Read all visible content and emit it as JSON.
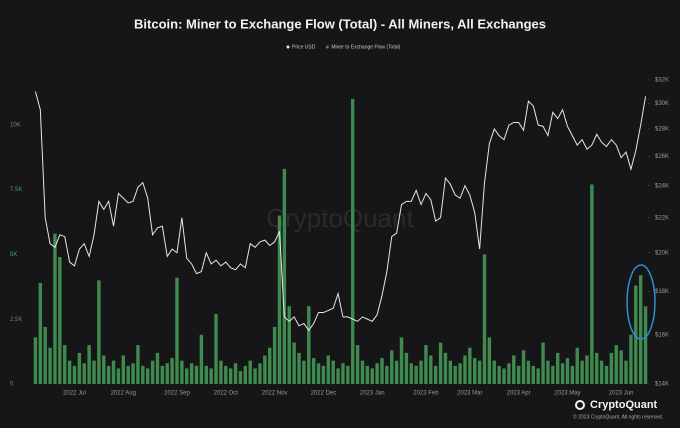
{
  "chart_data": {
    "type": "bar-line",
    "title": "Bitcoin: Miner to Exchange Flow (Total) - All Miners, All Exchanges",
    "watermark": "CryptoQuant",
    "footer_brand": "CryptoQuant",
    "footer_copyright": "© 2023 CryptoQuant. All rights reserved.",
    "categories": [
      null,
      null,
      null,
      null,
      null,
      null,
      null,
      null,
      "2022 Jul",
      null,
      null,
      null,
      null,
      null,
      null,
      null,
      null,
      null,
      "2022 Aug",
      null,
      null,
      null,
      null,
      null,
      null,
      null,
      null,
      null,
      null,
      "2022 Sep",
      null,
      null,
      null,
      null,
      null,
      null,
      null,
      null,
      null,
      "2022 Oct",
      null,
      null,
      null,
      null,
      null,
      null,
      null,
      null,
      null,
      "2022 Nov",
      null,
      null,
      null,
      null,
      null,
      null,
      null,
      null,
      null,
      "2022 Dec",
      null,
      null,
      null,
      null,
      null,
      null,
      null,
      null,
      null,
      "2023 Jan",
      null,
      null,
      null,
      null,
      null,
      null,
      null,
      null,
      null,
      null,
      "2023 Feb",
      null,
      null,
      null,
      null,
      null,
      null,
      null,
      null,
      "2023 Mar",
      null,
      null,
      null,
      null,
      null,
      null,
      null,
      null,
      null,
      "2023 Apr",
      null,
      null,
      null,
      null,
      null,
      null,
      null,
      null,
      null,
      "2023 May",
      null,
      null,
      null,
      null,
      null,
      null,
      null,
      null,
      null,
      null,
      "2023 Jun",
      null,
      null,
      null,
      null,
      null
    ],
    "series": [
      {
        "name": "Miner to Exchange Flow (Total)",
        "type": "bar",
        "color": "#3f8a4e",
        "values": [
          1800,
          3900,
          2200,
          1400,
          5800,
          4900,
          1500,
          900,
          700,
          1200,
          800,
          1500,
          900,
          4000,
          1100,
          700,
          900,
          600,
          1100,
          700,
          800,
          1500,
          700,
          600,
          900,
          1200,
          700,
          800,
          1000,
          4100,
          900,
          600,
          800,
          700,
          1900,
          700,
          600,
          2700,
          900,
          700,
          600,
          800,
          500,
          700,
          900,
          600,
          800,
          1100,
          1400,
          2200,
          6500,
          8300,
          3000,
          1600,
          1200,
          900,
          3000,
          1000,
          800,
          700,
          1100,
          900,
          600,
          800,
          700,
          11000,
          1500,
          900,
          700,
          600,
          800,
          1000,
          700,
          1300,
          900,
          1800,
          1200,
          800,
          700,
          900,
          1500,
          1100,
          700,
          1600,
          1200,
          900,
          700,
          800,
          1100,
          1400,
          1000,
          900,
          5000,
          1800,
          900,
          700,
          600,
          800,
          1100,
          700,
          1300,
          900,
          700,
          600,
          1600,
          900,
          700,
          1200,
          800,
          1000,
          700,
          1400,
          900,
          1100,
          7700,
          1200,
          900,
          700,
          1200,
          1500,
          1300,
          900,
          1900,
          3800,
          4200,
          3000
        ]
      },
      {
        "name": "Price USD",
        "type": "line",
        "axis": "y2",
        "color": "#e6e6e6",
        "values": [
          31000,
          29500,
          22000,
          20500,
          20300,
          21000,
          20900,
          19500,
          19300,
          20200,
          20500,
          19800,
          21000,
          23000,
          22500,
          23000,
          21500,
          23500,
          23200,
          22900,
          23000,
          23900,
          24200,
          23200,
          21000,
          21400,
          21500,
          19800,
          20200,
          20000,
          22000,
          19700,
          19400,
          18900,
          19000,
          20000,
          19400,
          19600,
          19300,
          19500,
          19200,
          19100,
          19400,
          19200,
          20500,
          20300,
          20600,
          20700,
          20400,
          20600,
          21200,
          16800,
          16600,
          16800,
          16400,
          16500,
          16200,
          16500,
          17000,
          17000,
          17100,
          17200,
          17900,
          16800,
          16800,
          16700,
          16600,
          16800,
          16700,
          16600,
          16900,
          17800,
          19000,
          20900,
          21100,
          22800,
          23000,
          23000,
          23700,
          22800,
          23500,
          23100,
          21800,
          22000,
          24500,
          24100,
          23400,
          23200,
          24000,
          23400,
          22300,
          20200,
          24200,
          26900,
          28000,
          27500,
          27200,
          28300,
          28500,
          28500,
          27900,
          30200,
          29800,
          28300,
          28200,
          27500,
          29300,
          28800,
          29500,
          28200,
          27500,
          26800,
          27200,
          26500,
          26800,
          27600,
          27000,
          26700,
          27200,
          26800,
          25900,
          26300,
          25100,
          26400,
          28300,
          30600
        ]
      }
    ],
    "ylim": [
      0,
      12000
    ],
    "yticks": [
      0,
      {
        "value": 2500,
        "label": "2.5K"
      },
      {
        "value": 5000,
        "label": "5K"
      },
      {
        "value": 7500,
        "label": "7.5K"
      },
      {
        "value": 10000,
        "label": "10K"
      }
    ],
    "y2lim": [
      14000,
      32600
    ],
    "y2scale": "log",
    "y2ticks": [
      {
        "value": 14000,
        "label": "$14K"
      },
      {
        "value": 16000,
        "label": "$16K"
      },
      {
        "value": 18000,
        "label": "$18K"
      },
      {
        "value": 20000,
        "label": "$20K"
      },
      {
        "value": 22000,
        "label": "$22K"
      },
      {
        "value": 24000,
        "label": "$24K"
      },
      {
        "value": 26000,
        "label": "$26K"
      },
      {
        "value": 28000,
        "label": "$28K"
      },
      {
        "value": 30000,
        "label": "$30K"
      },
      {
        "value": 32000,
        "label": "$32K"
      }
    ],
    "grid": false
  }
}
